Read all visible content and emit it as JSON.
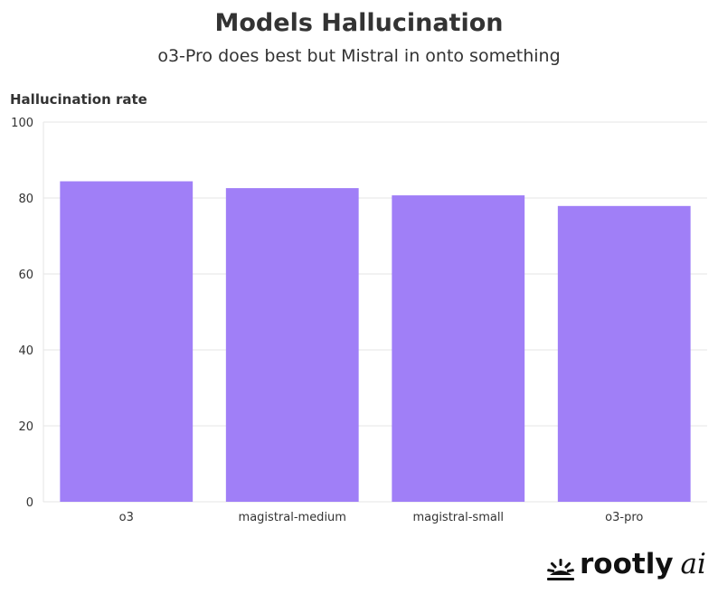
{
  "chart_data": {
    "type": "bar",
    "title": "Models Hallucination",
    "subtitle": "o3-Pro does best but Mistral in onto something",
    "ylabel": "Hallucination rate",
    "xlabel": "",
    "categories": [
      "o3",
      "magistral-medium",
      "magistral-small",
      "o3-pro"
    ],
    "values": [
      84.4,
      82.6,
      80.7,
      77.9
    ],
    "ylim": [
      0,
      100
    ],
    "yticks": [
      "0",
      "20",
      "40",
      "60",
      "80",
      "100"
    ],
    "grid": true,
    "legend": "none",
    "bar_color": "#a07ff7"
  },
  "logo": {
    "name": "rootly",
    "suffix": "ai",
    "icon": "sunrise-icon"
  }
}
